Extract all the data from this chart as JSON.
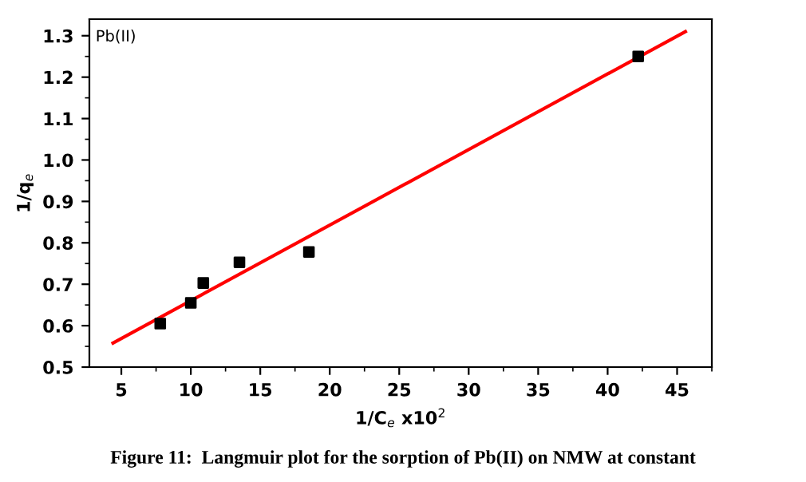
{
  "chart_data": {
    "type": "scatter",
    "title": "Figure 11:  Langmuir plot for the sorption of Pb(II) on NMW at constant",
    "xlabel": "1/C$_{e}$ x10$^{2}$",
    "ylabel": "1/q$_{e}$",
    "annotations": [
      "Pb(II)"
    ],
    "series": [
      {
        "type": "scatter",
        "color": "#000000",
        "marker": "square",
        "x": [
          7.8,
          10.0,
          10.9,
          13.5,
          18.5,
          42.2
        ],
        "values": [
          0.605,
          0.655,
          0.703,
          0.753,
          0.778,
          1.25
        ]
      },
      {
        "type": "line",
        "color": "#ff0000",
        "marker": "none",
        "line_style": "solid",
        "x": [
          4.4,
          45.6
        ],
        "values": [
          0.558,
          1.31
        ]
      }
    ],
    "xlim": [
      2.7,
      47.5
    ],
    "ylim": [
      0.5,
      1.34
    ],
    "xticks": [
      5,
      10,
      15,
      20,
      25,
      30,
      35,
      40,
      45
    ],
    "yticks": [
      {
        "value": 0.5,
        "label": "0.5"
      },
      {
        "value": 0.6,
        "label": "0.6"
      },
      {
        "value": 0.7,
        "label": "0.7"
      },
      {
        "value": 0.8,
        "label": "0.8"
      },
      {
        "value": 0.9,
        "label": "0.9"
      },
      {
        "value": 1.0,
        "label": "1.0"
      },
      {
        "value": 1.1,
        "label": "1.1"
      },
      {
        "value": 1.2,
        "label": "1.2"
      },
      {
        "value": 1.3,
        "label": "1.3"
      }
    ],
    "grid": false,
    "legend": false
  }
}
